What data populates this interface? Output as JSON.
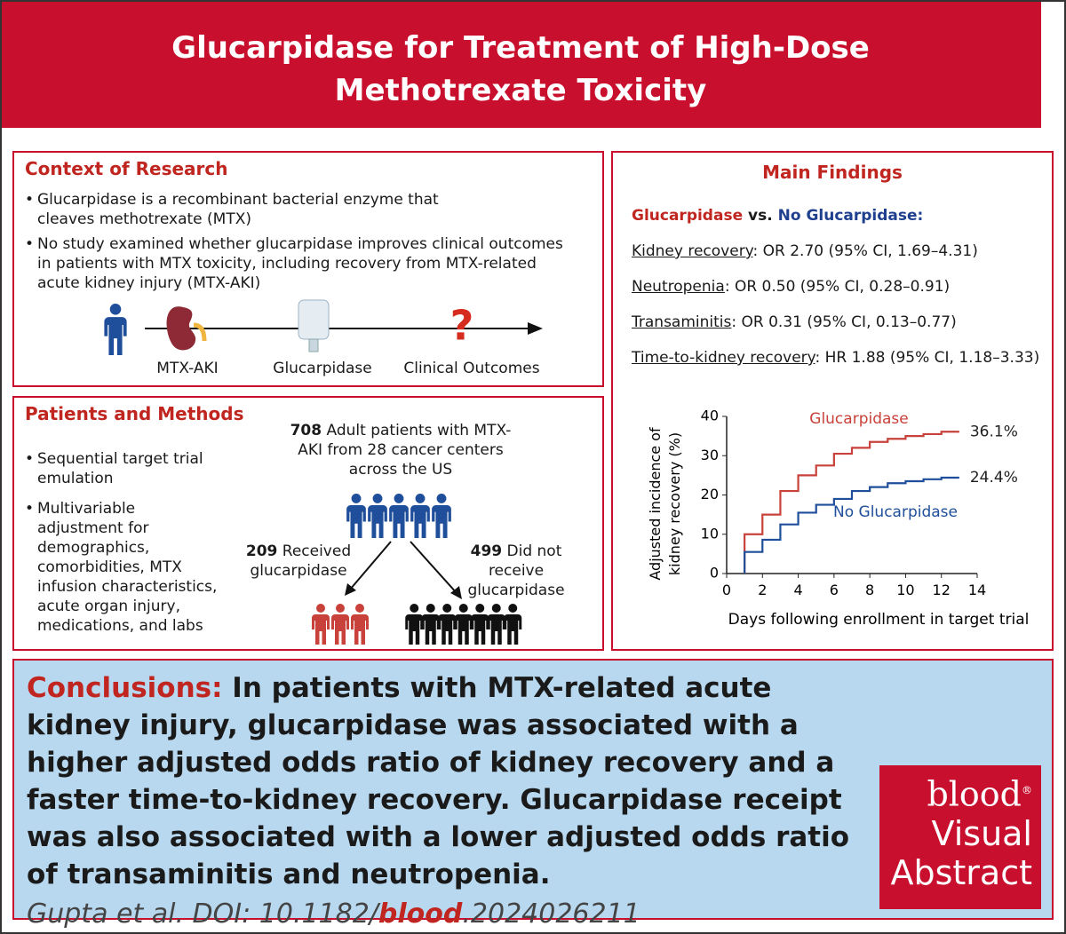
{
  "title": "Glucarpidase for Treatment of High-Dose Methotrexate Toxicity",
  "context": {
    "heading": "Context of Research",
    "bullets": [
      "Glucarpidase is a recombinant bacterial enzyme that cleaves methotrexate (MTX)",
      "No study examined whether glucarpidase improves clinical outcomes in patients with MTX toxicity, including recovery from MTX-related acute kidney injury (MTX-AKI)"
    ],
    "timeline": {
      "question": "?",
      "labels": [
        "MTX-AKI",
        "Glucarpidase",
        "Clinical Outcomes"
      ]
    }
  },
  "methods": {
    "heading": "Patients and Methods",
    "bullets": [
      "Sequential target trial emulation",
      "Multivariable adjustment for demographics, comorbidities, MTX infusion characteristics, acute organ injury, medications, and labs"
    ],
    "cohort": {
      "count": 708,
      "text": "Adult patients with MTX-AKI from 28 cancer centers across the US"
    },
    "arms": [
      {
        "count": 209,
        "text": "Received glucarpidase"
      },
      {
        "count": 499,
        "text": "Did not receive glucarpidase"
      }
    ]
  },
  "findings": {
    "heading": "Main Findings",
    "comparison": [
      "Glucarpidase",
      "vs.",
      "No Glucarpidase:"
    ],
    "results": [
      {
        "measure": "Kidney recovery",
        "estimate": ": OR 2.70 (95% CI, 1.69–4.31)"
      },
      {
        "measure": "Neutropenia",
        "estimate": ": OR 0.50 (95% CI, 0.28–0.91)"
      },
      {
        "measure": "Transaminitis",
        "estimate": ": OR 0.31 (95% CI, 0.13–0.77)"
      },
      {
        "measure": "Time-to-kidney recovery",
        "estimate": ": HR 1.88 (95% CI, 1.18–3.33)"
      }
    ]
  },
  "chart": {
    "type": "step",
    "x_label": "Days following enrollment in target trial",
    "y_label_lines": [
      "Adjusted incidence of",
      "kidney recovery (%)"
    ],
    "x": [
      1,
      2,
      3,
      4,
      5,
      6,
      7,
      8,
      9,
      10,
      11,
      12,
      13
    ],
    "series": [
      {
        "name": "Glucarpidase",
        "color": "#c8413a",
        "values": [
          10,
          15,
          21,
          25,
          27.5,
          30.5,
          32,
          33.5,
          34.3,
          35,
          35.5,
          36.1,
          36.1
        ],
        "value_labels": [
          null,
          null,
          null,
          null,
          null,
          null,
          null,
          null,
          null,
          null,
          null,
          null,
          "36.1%"
        ]
      },
      {
        "name": "No Glucarpidase",
        "color": "#1f4e9a",
        "values": [
          5.5,
          8.6,
          12.5,
          15.5,
          17.5,
          19,
          21,
          22,
          23,
          23.5,
          24,
          24.4,
          24.4
        ],
        "value_labels": [
          null,
          null,
          null,
          null,
          null,
          null,
          null,
          null,
          null,
          null,
          null,
          null,
          "24.4%"
        ]
      }
    ],
    "xlim": [
      0,
      14
    ],
    "xticks": [
      0,
      2,
      4,
      6,
      8,
      10,
      12,
      14
    ],
    "ylim": [
      0,
      40
    ],
    "yticks": [
      0,
      10,
      20,
      30,
      40
    ]
  },
  "conclusion": {
    "label": "Conclusions:",
    "text": "In patients with MTX-related acute kidney injury, glucarpidase was associated with a higher adjusted odds ratio of kidney recovery and a faster time-to-kidney recovery. Glucarpidase receipt was also associated with a lower adjusted odds ratio of transaminitis and neutropenia.",
    "citation": [
      "Gupta et al. DOI: 10.1182/",
      "blood",
      ".2024026211"
    ]
  },
  "logo": {
    "brand": "blood",
    "mark": "®",
    "lines": [
      "Visual",
      "Abstract"
    ]
  }
}
